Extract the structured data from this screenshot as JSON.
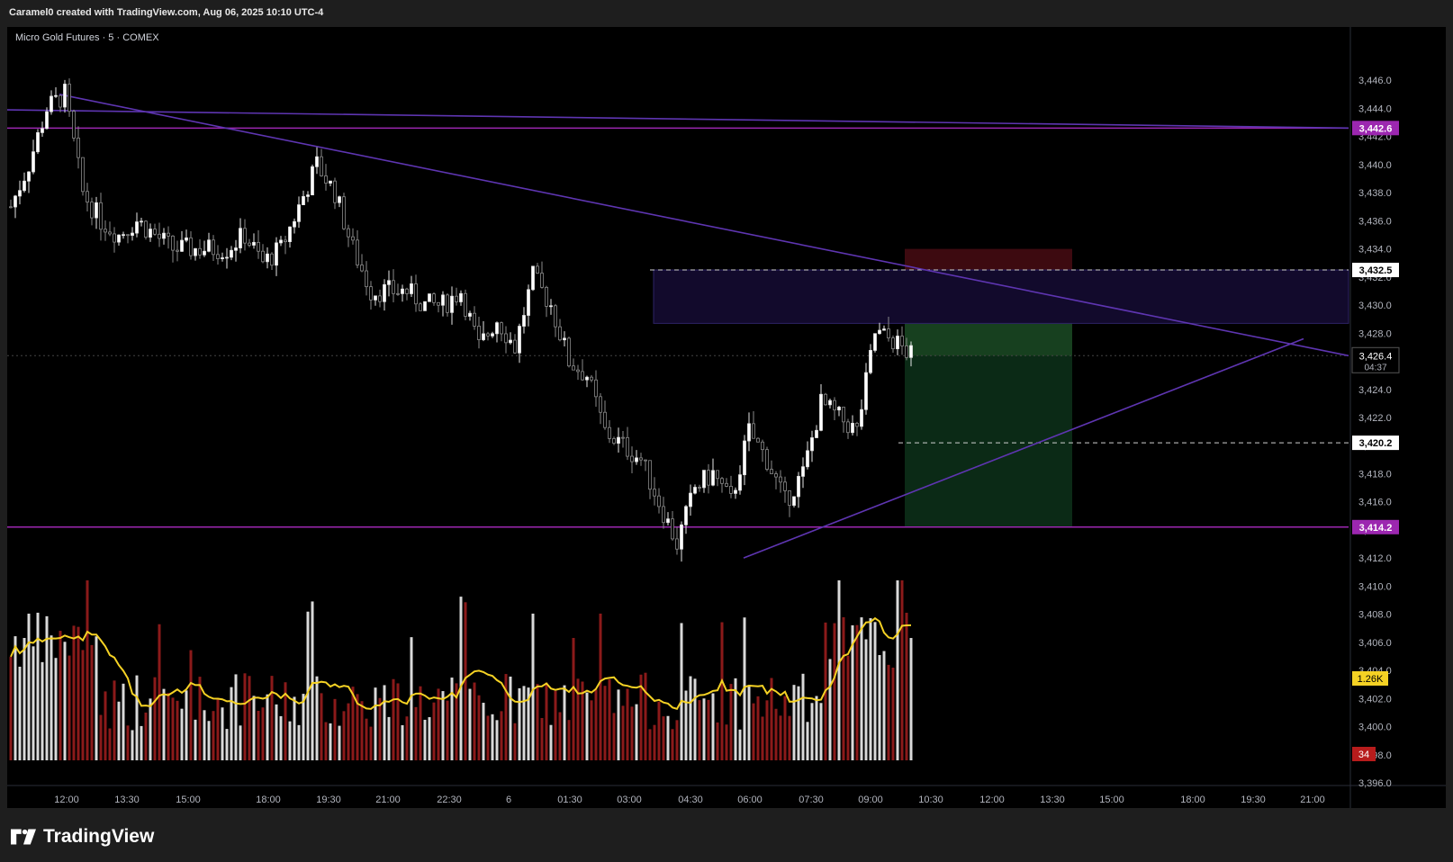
{
  "header": {
    "credit": "Caramel0 created with TradingView.com, Aug 06, 2025 10:10 UTC-4"
  },
  "symbol": {
    "title": "Micro Gold Futures · 5 · COMEX"
  },
  "footer": {
    "brand": "TradingView"
  },
  "chart_data": {
    "type": "candlestick",
    "title": "Micro Gold Futures · 5 · COMEX",
    "ylim": [
      3396,
      3448
    ],
    "y_ticks": [
      "3,446.0",
      "3,444.0",
      "3,442.0",
      "3,440.0",
      "3,438.0",
      "3,436.0",
      "3,434.0",
      "3,432.0",
      "3,430.0",
      "3,428.0",
      "3,426.0",
      "3,424.0",
      "3,422.0",
      "3,420.0",
      "3,418.0",
      "3,416.0",
      "3,414.0",
      "3,412.0",
      "3,410.0",
      "3,408.0",
      "3,406.0",
      "3,404.0",
      "3,402.0",
      "3,400.0",
      "3,398.0",
      "3,396.0"
    ],
    "x_ticks": [
      "12:00",
      "13:30",
      "15:00",
      "18:00",
      "19:30",
      "21:00",
      "22:30",
      "6",
      "01:30",
      "03:00",
      "04:30",
      "06:00",
      "07:30",
      "09:00",
      "10:30",
      "12:00",
      "13:30",
      "15:00",
      "18:00",
      "19:30",
      "21:00"
    ],
    "price_path": [
      3437,
      3440,
      3444,
      3445,
      3438,
      3436,
      3435,
      3436,
      3435,
      3434,
      3434,
      3434,
      3434,
      3435,
      3433,
      3434,
      3437,
      3440,
      3438,
      3434,
      3431,
      3431,
      3431,
      3430,
      3430,
      3431,
      3427,
      3429,
      3427,
      3432,
      3430,
      3426,
      3425,
      3421,
      3420,
      3419,
      3416,
      3413,
      3417,
      3418,
      3416,
      3421,
      3419,
      3416,
      3418,
      3423,
      3422,
      3421,
      3428,
      3427.5,
      3426.4
    ],
    "last_price": "3,426.4",
    "countdown": "04:37",
    "labels": {
      "resistance": "3,442.6",
      "support": "3,414.2",
      "top_dashed": "3,432.5",
      "bottom_dashed": "3,420.2"
    },
    "volume": {
      "label": "1.26K",
      "red_badge": "34",
      "ma_color": "#f5d224",
      "up_color": "#d9d9d9",
      "down_color": "#8b1a1a"
    },
    "position": {
      "entry": 3428.7,
      "stop": 3434.0,
      "target": 3414.2
    },
    "colors": {
      "horizontal_level": "#9c27b0",
      "trendline": "#5e35b1",
      "stop_zone": "#3d0a10",
      "target_zone": "#0b2a16",
      "supply_zone": "#120a2c"
    }
  }
}
